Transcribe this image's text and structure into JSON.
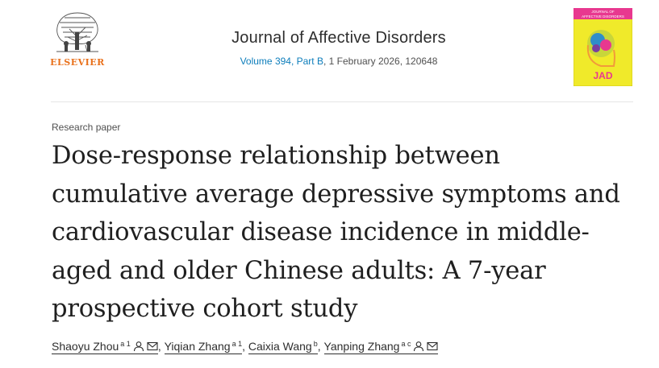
{
  "header": {
    "publisher": "ELSEVIER",
    "journal_title": "Journal of Affective Disorders",
    "volume_link": "Volume 394, Part B",
    "issue_date": ", 1 February 2026, 120648",
    "cover": {
      "line1": "JOURNAL OF",
      "line2": "AFFECTIVE DISORDERS",
      "abbr": "JAD",
      "background": "#f0ea2a",
      "accent": "#e8388f"
    }
  },
  "article": {
    "type": "Research paper",
    "title": "Dose-response relationship between cumulative average depressive symptoms and cardiovascular disease incidence in middle-aged and older Chinese adults: A 7-year prospective cohort study"
  },
  "authors": [
    {
      "name": "Shaoyu Zhou",
      "affiliations": "a 1",
      "icons": [
        "person-icon",
        "envelope-icon"
      ]
    },
    {
      "name": "Yiqian Zhang",
      "affiliations": "a 1",
      "icons": []
    },
    {
      "name": "Caixia Wang",
      "affiliations": "b",
      "icons": []
    },
    {
      "name": "Yanping Zhang",
      "affiliations": "a c",
      "icons": [
        "person-icon",
        "envelope-icon"
      ]
    }
  ],
  "colors": {
    "link": "#0c7dbb",
    "publisher_orange": "#e9711c",
    "text": "#2e2e2e"
  }
}
